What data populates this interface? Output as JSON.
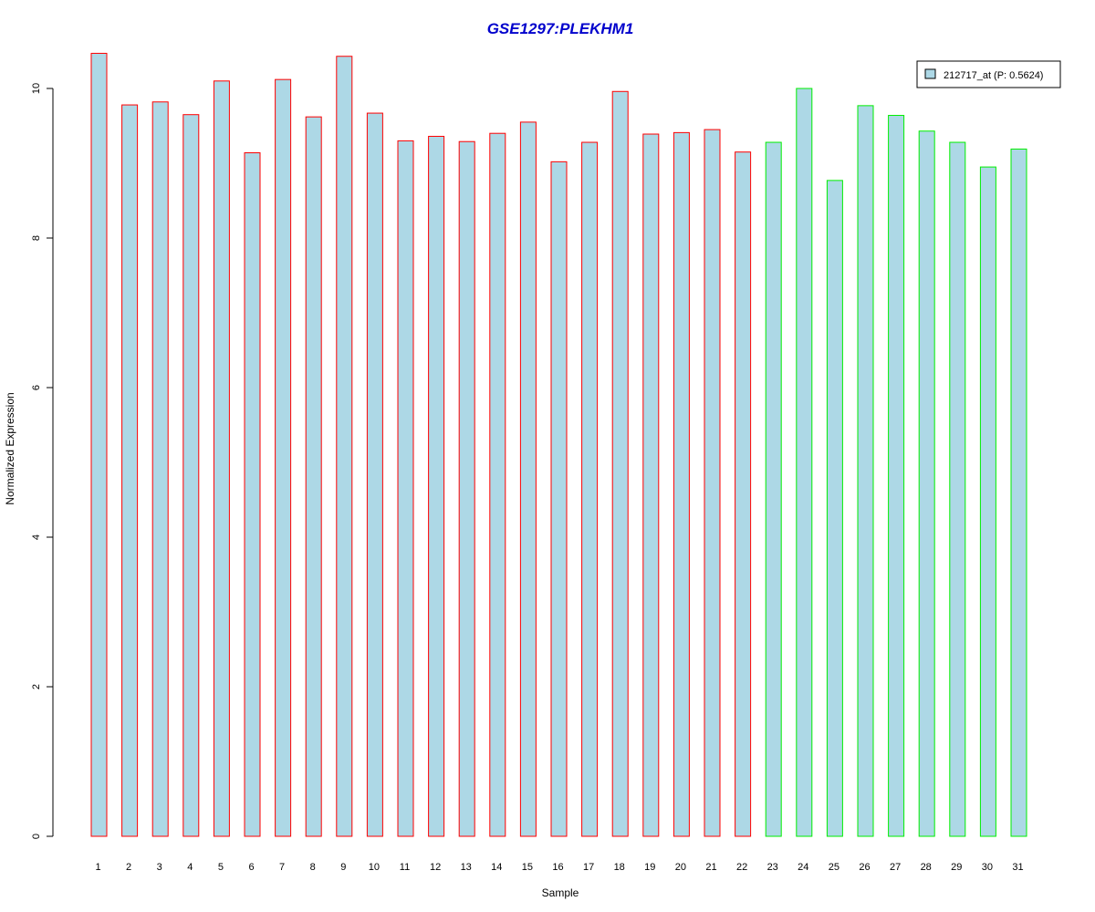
{
  "chart_data": {
    "type": "bar",
    "title": "GSE1297:PLEKHM1",
    "xlabel": "Sample",
    "ylabel": "Normalized Expression",
    "ylim": [
      0,
      10.5
    ],
    "yticks": [
      "0",
      "2",
      "4",
      "6",
      "8",
      "10"
    ],
    "categories": [
      "1",
      "2",
      "3",
      "4",
      "5",
      "6",
      "7",
      "8",
      "9",
      "10",
      "11",
      "12",
      "13",
      "14",
      "15",
      "16",
      "17",
      "18",
      "19",
      "20",
      "21",
      "22",
      "23",
      "24",
      "25",
      "26",
      "27",
      "28",
      "29",
      "30",
      "31"
    ],
    "series": [
      {
        "name": "212717_at (P: 0.5624)",
        "fill": "#add8e6",
        "values": [
          10.47,
          9.78,
          9.82,
          9.65,
          10.1,
          9.14,
          10.12,
          9.62,
          10.43,
          9.67,
          9.3,
          9.36,
          9.29,
          9.4,
          9.55,
          9.02,
          9.28,
          9.96,
          9.39,
          9.41,
          9.45,
          9.15,
          9.28,
          10.0,
          8.77,
          9.77,
          9.64,
          9.43,
          9.28,
          8.95,
          9.19
        ]
      }
    ],
    "group_outline_colors": [
      "#ff0000",
      "#ff0000",
      "#ff0000",
      "#ff0000",
      "#ff0000",
      "#ff0000",
      "#ff0000",
      "#ff0000",
      "#ff0000",
      "#ff0000",
      "#ff0000",
      "#ff0000",
      "#ff0000",
      "#ff0000",
      "#ff0000",
      "#ff0000",
      "#ff0000",
      "#ff0000",
      "#ff0000",
      "#ff0000",
      "#ff0000",
      "#ff0000",
      "#00ee00",
      "#00ee00",
      "#00ee00",
      "#00ee00",
      "#00ee00",
      "#00ee00",
      "#00ee00",
      "#00ee00",
      "#00ee00"
    ],
    "grid": false,
    "legend_position": "top-right"
  }
}
